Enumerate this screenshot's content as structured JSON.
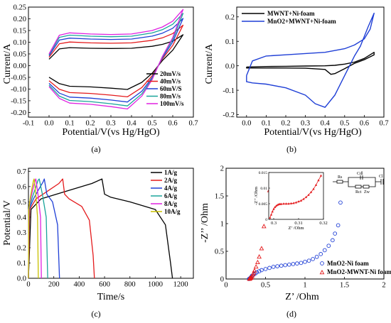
{
  "chart_data": [
    {
      "type": "line",
      "caption": "(a)",
      "xlabel": "Potential/V(vs Hg/HgO)",
      "ylabel": "Current/A",
      "xlim": [
        -0.1,
        0.7
      ],
      "ylim": [
        -0.22,
        0.25
      ],
      "xticks": [
        "-0.1",
        "0.0",
        "0.1",
        "0.2",
        "0.3",
        "0.4",
        "0.5",
        "0.6",
        "0.7"
      ],
      "yticks": [
        "0.25",
        "0.20",
        "0.15",
        "0.10",
        "0.05",
        "0.00",
        "-0.05",
        "-0.10",
        "-0.15",
        "-0.20"
      ],
      "legend_position": "bottom-right",
      "series": [
        {
          "name": "20mV/s",
          "color": "#000000",
          "scale": 0.55
        },
        {
          "name": "40mV/s",
          "color": "#e41a1c",
          "scale": 0.72
        },
        {
          "name": "60mV/S",
          "color": "#1f3fd6",
          "scale": 0.84
        },
        {
          "name": "80mV/s",
          "color": "#1aa59a",
          "scale": 0.93
        },
        {
          "name": "100mV/s",
          "color": "#e021e0",
          "scale": 1.0
        }
      ],
      "cv_shape": {
        "anodic": [
          [
            0.0,
            0.05
          ],
          [
            0.05,
            0.13
          ],
          [
            0.1,
            0.14
          ],
          [
            0.2,
            0.135
          ],
          [
            0.3,
            0.133
          ],
          [
            0.4,
            0.135
          ],
          [
            0.5,
            0.15
          ],
          [
            0.55,
            0.165
          ],
          [
            0.6,
            0.19
          ],
          [
            0.65,
            0.24
          ]
        ],
        "cathodic": [
          [
            0.65,
            0.24
          ],
          [
            0.6,
            0.12
          ],
          [
            0.55,
            0.04
          ],
          [
            0.5,
            -0.06
          ],
          [
            0.45,
            -0.13
          ],
          [
            0.38,
            -0.185
          ],
          [
            0.3,
            -0.175
          ],
          [
            0.2,
            -0.165
          ],
          [
            0.1,
            -0.16
          ],
          [
            0.05,
            -0.14
          ],
          [
            0.0,
            -0.09
          ]
        ]
      }
    },
    {
      "type": "line",
      "caption": "(b)",
      "xlabel": "Potential/V(vs Hg/HgO)",
      "ylabel": "Current/A",
      "xlim": [
        -0.05,
        0.7
      ],
      "ylim": [
        -0.21,
        0.24
      ],
      "xticks": [
        "0.0",
        "0.1",
        "0.2",
        "0.3",
        "0.4",
        "0.5",
        "0.6",
        "0.7"
      ],
      "yticks": [
        "0.2",
        "0.1",
        "0.0",
        "-0.1",
        "-0.2"
      ],
      "legend_position": "top-left",
      "series": [
        {
          "name": "MWNT+Ni-foam",
          "color": "#000000",
          "x": [
            0.0,
            0.1,
            0.2,
            0.3,
            0.4,
            0.45,
            0.5,
            0.55,
            0.6,
            0.65,
            0.65,
            0.6,
            0.55,
            0.5,
            0.45,
            0.43,
            0.4,
            0.3,
            0.2,
            0.1,
            0.0,
            0.0
          ],
          "y": [
            -0.005,
            -0.003,
            -0.002,
            -0.001,
            0.0,
            0.002,
            0.007,
            0.015,
            0.03,
            0.055,
            0.045,
            0.025,
            0.01,
            -0.012,
            -0.032,
            -0.035,
            -0.015,
            -0.01,
            -0.009,
            -0.009,
            -0.009,
            -0.005
          ]
        },
        {
          "name": "MnO2+MWNT+Ni-foam",
          "color": "#1f3fd6",
          "x": [
            0.0,
            0.03,
            0.1,
            0.2,
            0.3,
            0.4,
            0.5,
            0.55,
            0.6,
            0.63,
            0.65,
            0.62,
            0.58,
            0.55,
            0.5,
            0.45,
            0.4,
            0.35,
            0.3,
            0.2,
            0.1,
            0.03,
            0.0,
            0.0
          ],
          "y": [
            -0.04,
            0.02,
            0.04,
            0.045,
            0.05,
            0.055,
            0.07,
            0.085,
            0.11,
            0.15,
            0.215,
            0.16,
            0.08,
            0.04,
            -0.04,
            -0.12,
            -0.17,
            -0.155,
            -0.12,
            -0.09,
            -0.075,
            -0.07,
            -0.065,
            -0.04
          ]
        }
      ]
    },
    {
      "type": "line",
      "caption": "(c)",
      "xlabel": "Time/s",
      "ylabel": "Potential/V",
      "xlim": [
        0,
        1300
      ],
      "ylim": [
        0,
        0.72
      ],
      "xticks": [
        "0",
        "200",
        "400",
        "600",
        "800",
        "1000",
        "1200"
      ],
      "yticks": [
        "0.0",
        "0.1",
        "0.2",
        "0.3",
        "0.4",
        "0.5",
        "0.6",
        "0.7"
      ],
      "legend_position": "top-right",
      "series": [
        {
          "name": "1A/g",
          "color": "#000000",
          "x": [
            0,
            20,
            100,
            300,
            500,
            580,
            600,
            650,
            800,
            1000,
            1080,
            1120,
            1135
          ],
          "y": [
            0,
            0.45,
            0.52,
            0.57,
            0.62,
            0.65,
            0.55,
            0.53,
            0.5,
            0.45,
            0.35,
            0.1,
            0
          ]
        },
        {
          "name": "2A/g",
          "color": "#e41a1c",
          "x": [
            0,
            10,
            60,
            150,
            240,
            270,
            285,
            320,
            420,
            480,
            510,
            520
          ],
          "y": [
            0,
            0.45,
            0.52,
            0.57,
            0.62,
            0.65,
            0.55,
            0.52,
            0.47,
            0.38,
            0.15,
            0
          ]
        },
        {
          "name": "4A/g",
          "color": "#1f3fd6",
          "x": [
            0,
            5,
            40,
            80,
            115,
            125,
            145,
            190,
            230,
            245
          ],
          "y": [
            0,
            0.45,
            0.52,
            0.58,
            0.63,
            0.65,
            0.55,
            0.5,
            0.35,
            0
          ]
        },
        {
          "name": "6A/g",
          "color": "#1aa59a",
          "x": [
            0,
            4,
            30,
            60,
            75,
            85,
            110,
            140,
            152
          ],
          "y": [
            0,
            0.45,
            0.53,
            0.6,
            0.64,
            0.65,
            0.55,
            0.4,
            0
          ]
        },
        {
          "name": "8A/g",
          "color": "#e021e0",
          "x": [
            0,
            3,
            20,
            40,
            52,
            58,
            75,
            95,
            102
          ],
          "y": [
            0,
            0.45,
            0.53,
            0.6,
            0.64,
            0.65,
            0.55,
            0.4,
            0
          ]
        },
        {
          "name": "10A/g",
          "color": "#c8c000",
          "x": [
            0,
            2,
            15,
            30,
            40,
            45,
            58,
            72,
            78
          ],
          "y": [
            0,
            0.45,
            0.53,
            0.6,
            0.64,
            0.65,
            0.55,
            0.4,
            0
          ]
        }
      ]
    },
    {
      "type": "scatter",
      "caption": "(d)",
      "xlabel": "Z’ /Ohm",
      "ylabel": "-Z’’ /Ohm",
      "xlim": [
        0,
        2
      ],
      "ylim": [
        0,
        2
      ],
      "xticks": [
        "0",
        "0.5",
        "1",
        "1.5",
        "2"
      ],
      "yticks": [
        "0",
        "0.5",
        "1",
        "1.5",
        "2"
      ],
      "legend_position": "bottom-right",
      "series": [
        {
          "name": "MnO2-Ni foam",
          "color": "#1f3fd6",
          "marker": "circle",
          "x": [
            0.29,
            0.3,
            0.31,
            0.32,
            0.33,
            0.35,
            0.37,
            0.39,
            0.42,
            0.45,
            0.5,
            0.55,
            0.6,
            0.65,
            0.7,
            0.75,
            0.8,
            0.85,
            0.9,
            0.95,
            1.0,
            1.05,
            1.1,
            1.15,
            1.2,
            1.25,
            1.3,
            1.35,
            1.38,
            1.42,
            1.45
          ],
          "y": [
            0.0,
            0.01,
            0.02,
            0.04,
            0.06,
            0.08,
            0.1,
            0.12,
            0.14,
            0.16,
            0.18,
            0.2,
            0.22,
            0.23,
            0.24,
            0.25,
            0.26,
            0.27,
            0.28,
            0.29,
            0.31,
            0.33,
            0.36,
            0.4,
            0.45,
            0.52,
            0.6,
            0.7,
            0.82,
            0.97,
            1.38
          ]
        },
        {
          "name": "MnO2-MWNT-Ni foam",
          "color": "#e41a1c",
          "marker": "triangle",
          "x": [
            0.295,
            0.3,
            0.305,
            0.31,
            0.315,
            0.32,
            0.33,
            0.34,
            0.35,
            0.36,
            0.38,
            0.4,
            0.42,
            0.45,
            0.48,
            0.55
          ],
          "y": [
            0.0,
            0.005,
            0.01,
            0.015,
            0.02,
            0.03,
            0.05,
            0.08,
            0.11,
            0.15,
            0.22,
            0.3,
            0.4,
            0.55,
            0.95,
            1.6
          ]
        }
      ],
      "inset": {
        "xlabel": "Z’ /Ohm",
        "ylabel": "-Z’’ /Ohm",
        "xlim": [
          0.298,
          0.32
        ],
        "ylim": [
          0,
          0.015
        ],
        "xticks": [
          "0.3",
          "0.31",
          "0.32"
        ],
        "yticks": [
          "0",
          "0.005",
          "0.01",
          "0.015"
        ],
        "x": [
          0.2985,
          0.299,
          0.2995,
          0.3,
          0.3005,
          0.301,
          0.3015,
          0.302,
          0.3025,
          0.303,
          0.304,
          0.305,
          0.306,
          0.307,
          0.308,
          0.309,
          0.31,
          0.311,
          0.312,
          0.313,
          0.314,
          0.315,
          0.316,
          0.317,
          0.318,
          0.319
        ],
        "y": [
          0.0005,
          0.0015,
          0.0025,
          0.0033,
          0.0039,
          0.0043,
          0.0046,
          0.0048,
          0.0049,
          0.0049,
          0.005,
          0.005,
          0.005,
          0.0051,
          0.0052,
          0.0054,
          0.0057,
          0.006,
          0.0065,
          0.0071,
          0.0078,
          0.0087,
          0.0097,
          0.011,
          0.0125,
          0.014
        ]
      },
      "circuit_labels": {
        "rs": "Rs",
        "cdl": "Cdl",
        "cl": "Cl",
        "rct": "Rct",
        "zw": "Zw"
      }
    }
  ]
}
